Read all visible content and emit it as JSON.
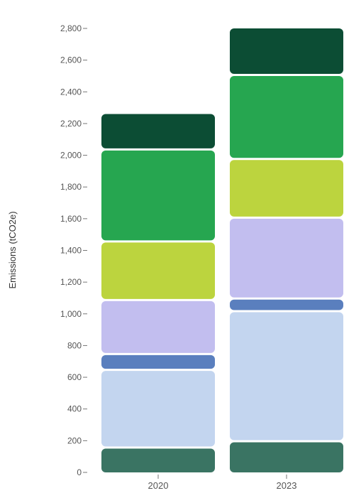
{
  "chart_data": {
    "type": "bar",
    "stacked": true,
    "categories": [
      "2020",
      "2023"
    ],
    "ylabel": "Emissions (tCO2e)",
    "ylim": [
      0,
      2900
    ],
    "yticks": [
      0,
      200,
      400,
      600,
      800,
      1000,
      1200,
      1400,
      1600,
      1800,
      2000,
      2200,
      2400,
      2600,
      2800
    ],
    "ytick_labels": [
      "0",
      "200",
      "400",
      "600",
      "800",
      "1,000",
      "1,200",
      "1,400",
      "1,600",
      "1,800",
      "2,000",
      "2,200",
      "2,400",
      "2,600",
      "2,800"
    ],
    "grid": false,
    "series": [
      {
        "color": "#3a7463",
        "values": [
          150,
          190
        ]
      },
      {
        "color": "#c3d5ef",
        "values": [
          490,
          820
        ]
      },
      {
        "color": "#5a7fbe",
        "values": [
          100,
          80
        ]
      },
      {
        "color": "#c2beef",
        "values": [
          340,
          510
        ]
      },
      {
        "color": "#bcd43e",
        "values": [
          370,
          370
        ]
      },
      {
        "color": "#26a650",
        "values": [
          580,
          530
        ]
      },
      {
        "color": "#0c4d34",
        "values": [
          230,
          300
        ]
      }
    ]
  }
}
